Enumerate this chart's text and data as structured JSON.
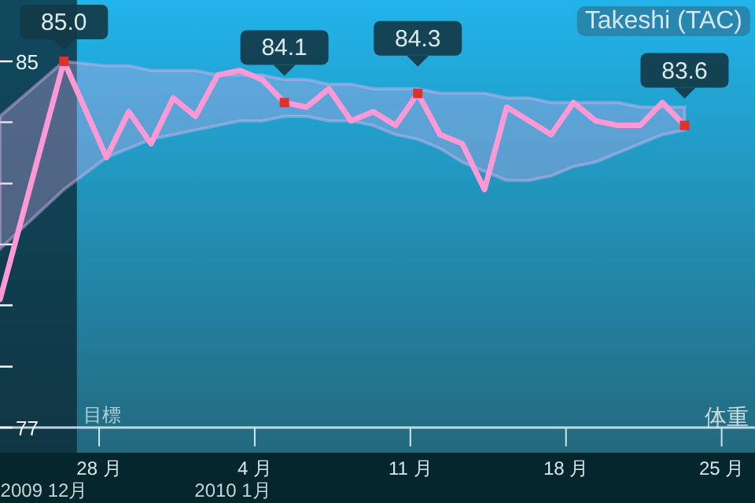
{
  "chart_data": {
    "type": "line",
    "title": "Takeshi (TAC)",
    "x": [
      "2009-12-23T13:00",
      "2009-12-26T10:00",
      "2009-12-28T08:00",
      "2009-12-29T08:00",
      "2009-12-30T08:00",
      "2009-12-31T08:00",
      "2010-01-01T08:00",
      "2010-01-02T08:00",
      "2010-01-03T08:00",
      "2010-01-04T08:00",
      "2010-01-05T08:00",
      "2010-01-06T08:00",
      "2010-01-07T08:00",
      "2010-01-08T08:00",
      "2010-01-09T08:00",
      "2010-01-10T08:00",
      "2010-01-11T08:00",
      "2010-01-12T08:00",
      "2010-01-13T08:00",
      "2010-01-14T08:00",
      "2010-01-15T08:00",
      "2010-01-16T08:00",
      "2010-01-17T08:00",
      "2010-01-18T08:00",
      "2010-01-19T08:00",
      "2010-01-20T08:00",
      "2010-01-21T08:00",
      "2010-01-22T08:00",
      "2010-01-23T08:00"
    ],
    "xlim": [
      "2009-12-23T13:00",
      "2010-01-26T12:00"
    ],
    "xticks": [
      {
        "value": "2009-12-28",
        "label": "28 月"
      },
      {
        "value": "2010-01-04",
        "label": "4 月"
      },
      {
        "value": "2010-01-11",
        "label": "11 月"
      },
      {
        "value": "2010-01-18",
        "label": "18 月"
      },
      {
        "value": "2010-01-25",
        "label": "25 月"
      }
    ],
    "ylim": [
      76.45,
      86.34
    ],
    "yticks": [
      85,
      {
        "value": 83.67,
        "label": null
      },
      {
        "value": 82.33,
        "label": null
      },
      {
        "value": 81,
        "label": null
      },
      {
        "value": 79.67,
        "label": null
      },
      {
        "value": 78.33,
        "label": null
      },
      77
    ],
    "series": [
      {
        "color": "#ff99d6",
        "values": [
          79.8,
          85.0,
          82.9,
          83.9,
          83.2,
          84.2,
          83.8,
          84.7,
          84.8,
          84.6,
          84.1,
          84.0,
          84.4,
          83.7,
          83.9,
          83.6,
          84.3,
          83.4,
          83.2,
          82.2,
          84.0,
          83.7,
          83.4,
          84.1,
          83.7,
          83.6,
          83.6,
          84.1,
          83.6
        ],
        "upper": [
          83.8,
          85.0,
          84.9,
          84.9,
          84.8,
          84.8,
          84.8,
          84.7,
          84.7,
          84.7,
          84.6,
          84.6,
          84.5,
          84.5,
          84.4,
          84.4,
          84.4,
          84.3,
          84.3,
          84.3,
          84.2,
          84.2,
          84.1,
          84.1,
          84.1,
          84.1,
          84.0,
          84.0,
          84.0
        ],
        "lower": [
          80.9,
          82.2,
          82.9,
          83.1,
          83.3,
          83.4,
          83.5,
          83.6,
          83.7,
          83.7,
          83.8,
          83.8,
          83.7,
          83.7,
          83.6,
          83.4,
          83.3,
          83.1,
          82.8,
          82.6,
          82.4,
          82.4,
          82.5,
          82.7,
          82.8,
          83.0,
          83.2,
          83.4,
          83.5
        ]
      }
    ],
    "ref_lines": [
      {
        "axis": "y",
        "value": 77,
        "label": "目標",
        "color": "#cfe6ee"
      }
    ],
    "bands": [
      {
        "axis": "x",
        "from": "2009-12-23T13:00",
        "to": "2009-12-27T00:00",
        "color": "#0b2530"
      }
    ],
    "annotations": [
      {
        "text": "85.0",
        "x": "2009-12-26T10:00",
        "y": 85.0
      },
      {
        "text": "84.1",
        "x": "2010-01-05T08:00",
        "y": 84.1
      },
      {
        "text": "84.3",
        "x": "2010-01-11T08:00",
        "y": 84.3
      },
      {
        "text": "83.6",
        "x": "2010-01-23T08:00",
        "y": 83.6
      },
      "2009 12月",
      "2010 1月",
      "体重"
    ]
  }
}
